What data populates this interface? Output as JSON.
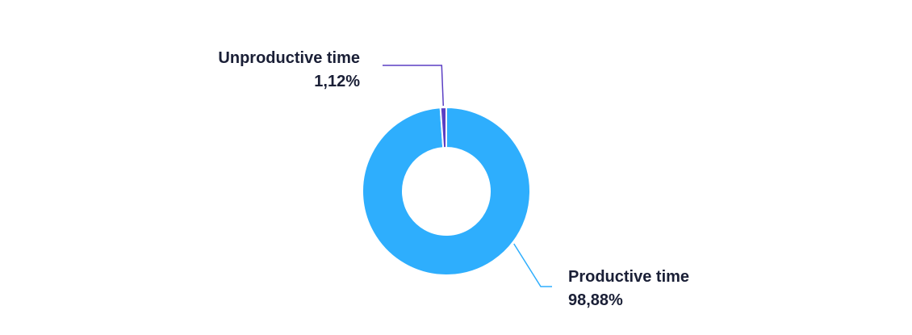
{
  "chart_data": {
    "type": "pie",
    "variant": "donut",
    "title": "",
    "series": [
      {
        "slices": [
          {
            "label": "Productive time",
            "value": 98.88,
            "display_value": "98,88%",
            "color": "#2eaefd"
          },
          {
            "label": "Unproductive time",
            "value": 1.12,
            "display_value": "1,12%",
            "color": "#5b3fc4"
          }
        ]
      }
    ],
    "legend": "none",
    "data_labels": "outside-with-leader-lines",
    "background": "#ffffff"
  }
}
